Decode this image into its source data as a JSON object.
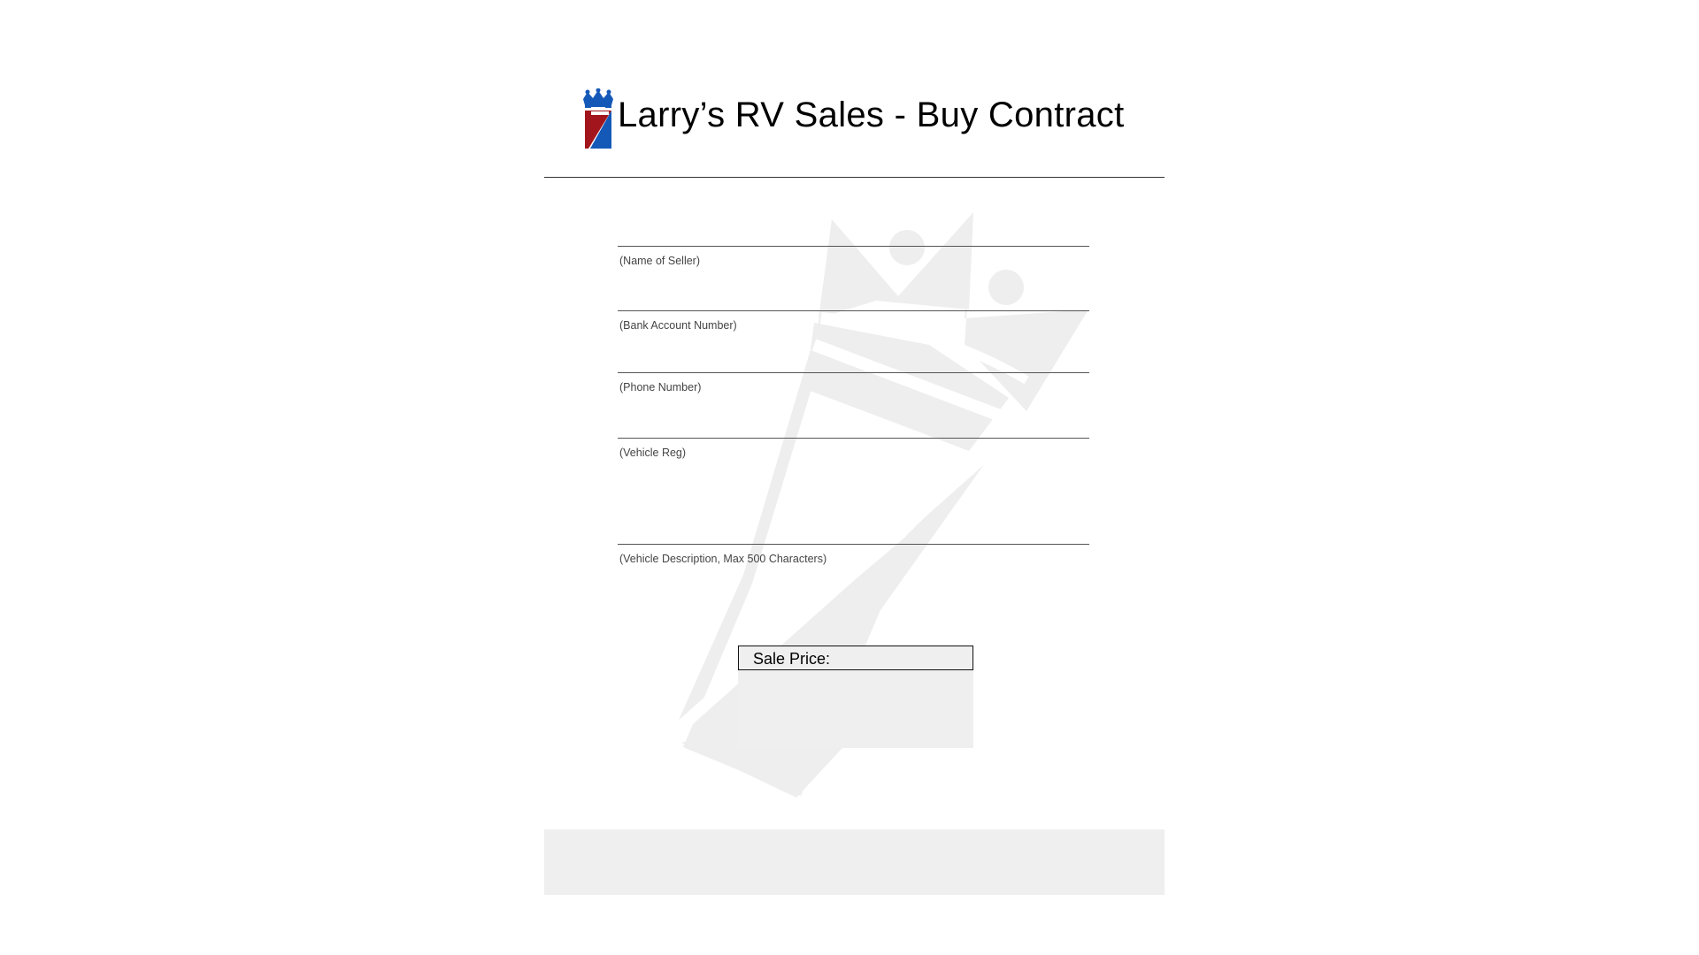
{
  "document": {
    "title": "Larry’s RV Sales - Buy Contract"
  },
  "form": {
    "fields": [
      {
        "label": "(Name of Seller)"
      },
      {
        "label": "(Bank Account Number)"
      },
      {
        "label": "(Phone Number)"
      },
      {
        "label": "(Vehicle Reg)"
      },
      {
        "label": "(Vehicle Description, Max 500 Characters)"
      }
    ],
    "sale_price_label": "Sale Price:"
  },
  "icons": {
    "logo": "crown-flag-logo-icon",
    "watermark": "crown-watermark-icon"
  },
  "colors": {
    "logo_red": "#a3151c",
    "logo_blue": "#1559b8",
    "watermark": "#eeeeee",
    "field_fill": "#efefef"
  }
}
